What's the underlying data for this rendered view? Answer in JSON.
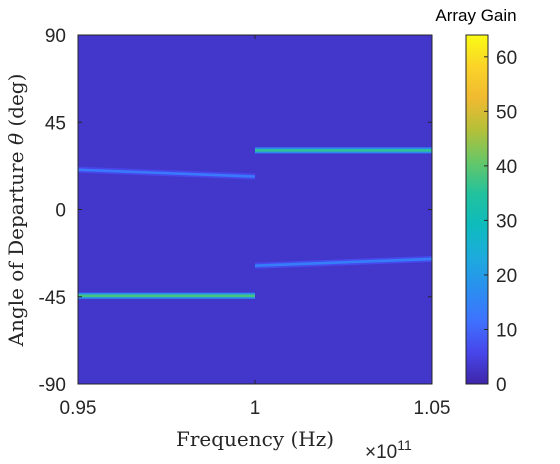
{
  "chart_data": {
    "type": "heatmap",
    "xlabel": "Frequency (Hz)",
    "x_exponent_label": "×10",
    "x_exponent_power": "11",
    "ylabel": "Angle of Departure θ (deg)",
    "xlim": [
      0.95,
      1.05
    ],
    "ylim": [
      -90,
      90
    ],
    "x_ticks": [
      "0.95",
      "1",
      "1.05"
    ],
    "x_tick_values": [
      0.95,
      1.0,
      1.05
    ],
    "y_ticks": [
      "90",
      "45",
      "0",
      "-45",
      "-90"
    ],
    "y_tick_values": [
      90,
      45,
      0,
      -45,
      -90
    ],
    "background_value": 3,
    "colorbar": {
      "title": "Array Gain",
      "range": [
        0,
        64
      ],
      "ticks": [
        "60",
        "50",
        "40",
        "30",
        "20",
        "10",
        "0"
      ],
      "tick_values": [
        60,
        50,
        40,
        30,
        20,
        10,
        0
      ]
    },
    "colormap": [
      "#3e26a8",
      "#4746eb",
      "#3e72fe",
      "#2a8fef",
      "#1cabdc",
      "#0ebbbd",
      "#22c29d",
      "#66c768",
      "#b4c039",
      "#f0ba31",
      "#fbd328",
      "#f9fb14"
    ],
    "beams": [
      {
        "x": [
          0.95,
          1.0
        ],
        "y": [
          20.5,
          17.0
        ],
        "peak": 13
      },
      {
        "x": [
          0.95,
          1.0
        ],
        "y": [
          -44.5,
          -44.5
        ],
        "peak": 38
      },
      {
        "x": [
          1.0,
          1.05
        ],
        "y": [
          30.5,
          30.5
        ],
        "peak": 36
      },
      {
        "x": [
          1.0,
          1.05
        ],
        "y": [
          -29.0,
          -25.5
        ],
        "peak": 14
      }
    ]
  }
}
